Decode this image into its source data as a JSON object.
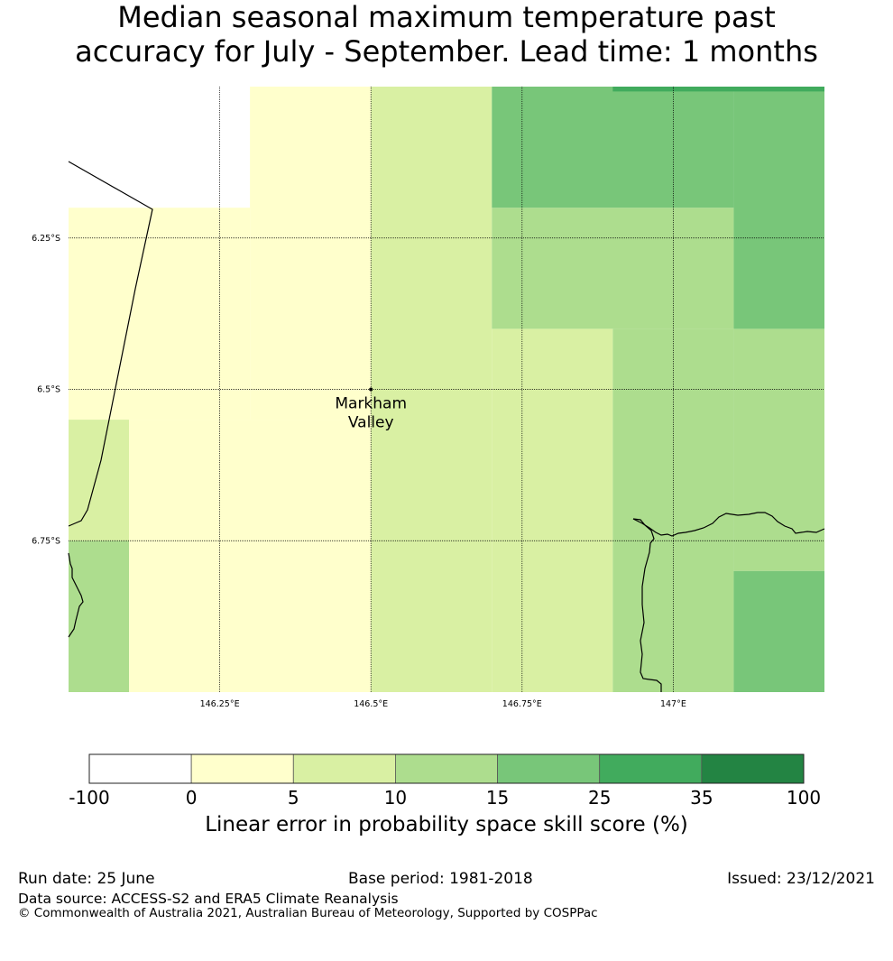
{
  "title": {
    "line1": "Median seasonal maximum temperature past",
    "line2": "accuracy for July - September. Lead time: 1 months"
  },
  "map": {
    "extent": {
      "lon_min": 146.0,
      "lon_max": 147.25,
      "lat_min": -7.0,
      "lat_max": -6.0
    },
    "lon_ticks": [
      146.25,
      146.5,
      146.75,
      147.0
    ],
    "lon_tick_labels": [
      "146.25°E",
      "146.5°E",
      "146.75°E",
      "147°E"
    ],
    "lat_ticks": [
      -6.25,
      -6.5,
      -6.75
    ],
    "lat_tick_labels": [
      "6.25°S",
      "6.5°S",
      "6.75°S"
    ],
    "grid_lines": true,
    "location": {
      "name_line1": "Markham",
      "name_line2": "Valley",
      "lon": 146.5,
      "lat": -6.5
    },
    "skill_cells": [
      {
        "lon0": 146.0,
        "lon1": 146.1,
        "lat0": -6.75,
        "lat1": -6.55,
        "bin": 2
      },
      {
        "lon0": 146.0,
        "lon1": 146.1,
        "lat0": -7.0,
        "lat1": -6.75,
        "bin": 3
      },
      {
        "lon0": 146.0,
        "lon1": 146.3,
        "lat0": -6.55,
        "lat1": -6.2,
        "bin": 1
      },
      {
        "lon0": 146.1,
        "lon1": 146.5,
        "lat0": -7.0,
        "lat1": -6.55,
        "bin": 1
      },
      {
        "lon0": 146.3,
        "lon1": 146.5,
        "lat0": -6.55,
        "lat1": -6.0,
        "bin": 1
      },
      {
        "lon0": 146.5,
        "lon1": 146.7,
        "lat0": -7.0,
        "lat1": -6.0,
        "bin": 2
      },
      {
        "lon0": 146.7,
        "lon1": 146.9,
        "lat0": -7.0,
        "lat1": -6.4,
        "bin": 2
      },
      {
        "lon0": 146.7,
        "lon1": 147.1,
        "lat0": -6.4,
        "lat1": -6.2,
        "bin": 3
      },
      {
        "lon0": 146.9,
        "lon1": 147.1,
        "lat0": -7.0,
        "lat1": -6.4,
        "bin": 3
      },
      {
        "lon0": 147.1,
        "lon1": 147.25,
        "lat0": -6.8,
        "lat1": -6.4,
        "bin": 3
      },
      {
        "lon0": 147.1,
        "lon1": 147.25,
        "lat0": -7.0,
        "lat1": -6.8,
        "bin": 4
      },
      {
        "lon0": 147.1,
        "lon1": 147.25,
        "lat0": -6.4,
        "lat1": -6.0,
        "bin": 4
      },
      {
        "lon0": 146.7,
        "lon1": 147.1,
        "lat0": -6.2,
        "lat1": -6.0,
        "bin": 4
      },
      {
        "lon0": 146.9,
        "lon1": 147.25,
        "lat0": -6.008,
        "lat1": -6.0,
        "bin": 5
      }
    ]
  },
  "colorbar": {
    "ticks": [
      "-100",
      "0",
      "5",
      "10",
      "15",
      "25",
      "35",
      "100"
    ],
    "colors": [
      "#ffffff",
      "#ffffcc",
      "#d9f0a3",
      "#addd8e",
      "#78c679",
      "#41ab5d",
      "#238443"
    ],
    "label": "Linear error in probability space skill score (%)"
  },
  "footer": {
    "run_date": "Run date: 25 June",
    "base_period": "Base period: 1981-2018",
    "issued": "Issued: 23/12/2021",
    "data_source": "Data source: ACCESS-S2 and ERA5 Climate Reanalysis",
    "copyright": "© Commonwealth of Australia 2021, Australian Bureau of Meteorology, Supported by COSPPac"
  }
}
